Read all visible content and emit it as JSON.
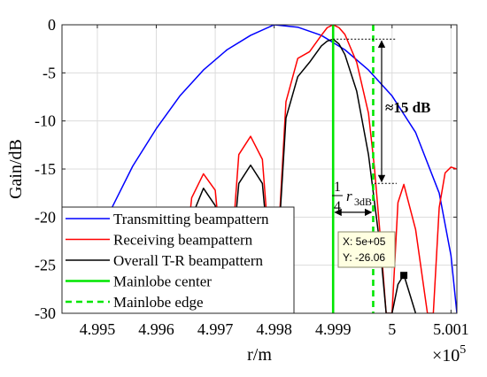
{
  "chart_data": {
    "type": "line",
    "xlabel": "r/m",
    "ylabel": "Gain/dB",
    "xlim": [
      499440,
      500110
    ],
    "ylim": [
      -30,
      0
    ],
    "x_multiplier": "×10^5",
    "x_multiplier_base": "×10",
    "x_multiplier_exp": "5",
    "grid": "on",
    "xticks": [
      499500,
      499600,
      499700,
      499800,
      499900,
      500000,
      500100
    ],
    "xtick_labels": [
      "4.995",
      "4.996",
      "4.997",
      "4.998",
      "4.999",
      "5",
      "5.001"
    ],
    "yticks": [
      0,
      -5,
      -10,
      -15,
      -20,
      -25,
      -30
    ],
    "ytick_labels": [
      "0",
      "-5",
      "-10",
      "-15",
      "-20",
      "-25",
      "-30"
    ],
    "series": [
      {
        "name": "Transmitting beampattern",
        "color": "#0000ff",
        "style": "solid",
        "x": [
          499440,
          499480,
          499520,
          499560,
          499600,
          499640,
          499680,
          499720,
          499760,
          499800,
          499840,
          499880,
          499920,
          499960,
          500000,
          500040,
          500080,
          500100,
          500110
        ],
        "y": [
          -30,
          -25.5,
          -19.6,
          -14.7,
          -10.8,
          -7.4,
          -4.7,
          -2.6,
          -1.1,
          0,
          -0.25,
          -1.1,
          -2.6,
          -4.7,
          -7.4,
          -11.2,
          -17.5,
          -24,
          -30
        ]
      },
      {
        "name": "Receiving beampattern",
        "color": "#ff0000",
        "style": "solid",
        "x": [
          499440,
          499460,
          499470,
          499480,
          499490,
          499500,
          499520,
          499540,
          499560,
          499580,
          499600,
          499620,
          499640,
          499660,
          499680,
          499700,
          499720,
          499740,
          499760,
          499780,
          499800,
          499820,
          499840,
          499860,
          499880,
          499890,
          499900,
          499910,
          499920,
          499940,
          499960,
          499970,
          499980,
          499990,
          500000,
          500010,
          500020,
          500040,
          500060,
          500070,
          500080,
          500090,
          500100,
          500110
        ],
        "y": [
          -30,
          -25,
          -20.2,
          -19.3,
          -20.2,
          -23,
          -30,
          -24,
          -20.5,
          -19.5,
          -21.5,
          -25,
          -30,
          -18,
          -15.5,
          -17.2,
          -30,
          -13.5,
          -11.6,
          -14,
          -30,
          -8,
          -3.5,
          -2.8,
          -1.1,
          -0.3,
          0,
          -0.3,
          -1,
          -3.9,
          -9.2,
          -14.8,
          -22,
          -30,
          -30,
          -18.5,
          -16.6,
          -21.3,
          -30,
          -30,
          -19,
          -15.4,
          -14.8,
          -15
        ]
      },
      {
        "name": "Overall T-R beampattern",
        "color": "#000000",
        "style": "solid",
        "x": [
          499640,
          499660,
          499680,
          499700,
          499720,
          499740,
          499760,
          499780,
          499800,
          499820,
          499840,
          499860,
          499880,
          499890,
          499900,
          499910,
          499920,
          499940,
          499960,
          499980,
          499990,
          500000,
          500010,
          500020,
          500030,
          500040
        ],
        "y": [
          -30,
          -20,
          -17,
          -18.8,
          -30,
          -16.5,
          -14.6,
          -16.5,
          -30,
          -9.7,
          -5.4,
          -3.9,
          -2.2,
          -1.7,
          -1.5,
          -2,
          -3.1,
          -6.9,
          -13.5,
          -23.2,
          -30,
          -30,
          -27,
          -26,
          -28,
          -30
        ]
      },
      {
        "name": "Mainlobe center",
        "color": "#00e600",
        "style": "solid",
        "x": [
          499900,
          499900
        ],
        "y": [
          0,
          -30
        ]
      },
      {
        "name": "Mainlobe edge",
        "color": "#00e600",
        "style": "dashed",
        "x": [
          499968,
          499968
        ],
        "y": [
          0,
          -30
        ]
      }
    ],
    "annotations": {
      "diff_label": "≈15 dB",
      "frac_num": "1",
      "frac_den": "4",
      "r_symbol": "r",
      "r_subscript": "3dB",
      "datatip_x": "X: 5e+05",
      "datatip_y": "Y: -26.06",
      "datatip_point": [
        500020,
        -26.06
      ]
    },
    "legend": "lower-left"
  }
}
